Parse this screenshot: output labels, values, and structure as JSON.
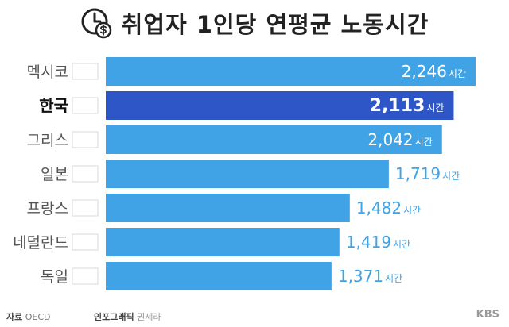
{
  "header": {
    "title": "취업자 1인당 연평균 노동시간"
  },
  "chart_data": {
    "type": "bar",
    "orientation": "horizontal",
    "title": "취업자 1인당 연평균 노동시간",
    "categories": [
      "멕시코",
      "한국",
      "그리스",
      "일본",
      "프랑스",
      "네덜란드",
      "독일"
    ],
    "values": [
      2246,
      2113,
      2042,
      1719,
      1482,
      1419,
      1371
    ],
    "value_labels": [
      "2,246",
      "2,113",
      "2,042",
      "1,719",
      "1,482",
      "1,419",
      "1,371"
    ],
    "unit": "시간",
    "highlight_category": "한국",
    "flags": [
      "mexico-flag",
      "korea-flag",
      "greece-flag",
      "japan-flag",
      "france-flag",
      "netherlands-flag",
      "germany-flag"
    ],
    "colors": {
      "bar": "#3fa3e6",
      "bar_highlight": "#2f56c6",
      "label_inside": "#ffffff",
      "label_outside": "#3fa3e6"
    }
  },
  "footer": {
    "source_label": "자료",
    "source_value": "OECD",
    "credit_label": "인포그래픽",
    "credit_value": "권세라",
    "brand": "KBS"
  }
}
